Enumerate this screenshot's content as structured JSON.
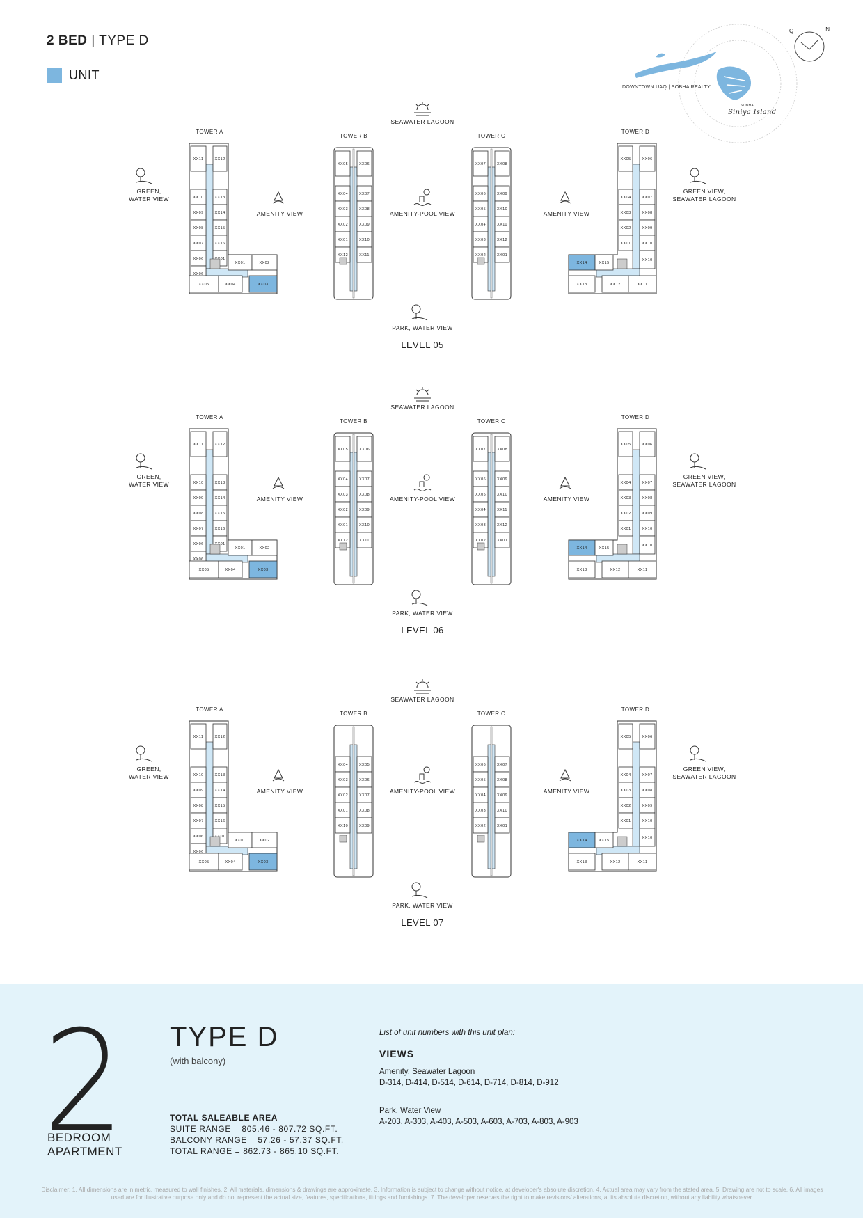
{
  "header": {
    "bed": "2 BED",
    "sep": " | ",
    "type": "TYPE D"
  },
  "legend": {
    "label": "UNIT",
    "color": "#7db6df"
  },
  "map": {
    "caption_left": "DOWNTOWN UAQ | SOBHA REALTY",
    "caption_brand": "SOBHA",
    "caption_island": "Siniya Island",
    "compass_q": "Q",
    "compass_n": "N"
  },
  "views": {
    "top": "SEAWATER LAGOON",
    "bottom": "PARK, WATER VIEW",
    "left_1": "GREEN,",
    "left_2": "WATER VIEW",
    "amenity": "AMENITY VIEW",
    "pool": "AMENITY-POOL VIEW",
    "right_1": "GREEN VIEW,",
    "right_2": "SEAWATER LAGOON"
  },
  "towers": {
    "a": "TOWER A",
    "b": "TOWER B",
    "c": "TOWER C",
    "d": "TOWER D"
  },
  "levels": [
    {
      "label": "LEVEL 05",
      "a": [
        "XX11",
        "XX12",
        "XX10",
        "XX13",
        "XX09",
        "XX14",
        "XX08",
        "XX15",
        "XX07",
        "XX16",
        "XX06",
        "XX01",
        "XX02",
        "XX05",
        "XX04",
        "XX03"
      ],
      "b": [
        "XX05",
        "XX06",
        "XX04",
        "XX07",
        "XX03",
        "XX08",
        "XX02",
        "XX09",
        "XX01",
        "XX10",
        "XX12",
        "XX11"
      ],
      "c": [
        "XX07",
        "XX08",
        "XX06",
        "XX09",
        "XX05",
        "XX10",
        "XX04",
        "XX11",
        "XX03",
        "XX12",
        "XX02",
        "XX01"
      ],
      "d": [
        "XX05",
        "XX06",
        "XX04",
        "XX07",
        "XX03",
        "XX08",
        "XX02",
        "XX09",
        "XX01",
        "XX10",
        "XX14",
        "XX15",
        "XX13",
        "XX12",
        "XX11"
      ]
    },
    {
      "label": "LEVEL 06",
      "a": [
        "XX11",
        "XX12",
        "XX10",
        "XX13",
        "XX09",
        "XX14",
        "XX08",
        "XX15",
        "XX07",
        "XX16",
        "XX06",
        "XX01",
        "XX02",
        "XX05",
        "XX04",
        "XX03"
      ],
      "b": [
        "XX05",
        "XX06",
        "XX04",
        "XX07",
        "XX03",
        "XX08",
        "XX02",
        "XX09",
        "XX01",
        "XX10",
        "XX12",
        "XX11"
      ],
      "c": [
        "XX07",
        "XX08",
        "XX06",
        "XX09",
        "XX05",
        "XX10",
        "XX04",
        "XX11",
        "XX03",
        "XX12",
        "XX02",
        "XX01"
      ],
      "d": [
        "XX05",
        "XX06",
        "XX04",
        "XX07",
        "XX03",
        "XX08",
        "XX02",
        "XX09",
        "XX01",
        "XX10",
        "XX14",
        "XX15",
        "XX13",
        "XX12",
        "XX11"
      ]
    },
    {
      "label": "LEVEL 07",
      "a": [
        "XX11",
        "XX12",
        "XX10",
        "XX13",
        "XX09",
        "XX14",
        "XX08",
        "XX15",
        "XX07",
        "XX16",
        "XX06",
        "XX01",
        "XX02",
        "XX05",
        "XX04",
        "XX03"
      ],
      "b": [
        "XX04",
        "XX05",
        "XX03",
        "XX06",
        "XX02",
        "XX07",
        "XX01",
        "XX08",
        "XX10",
        "XX09"
      ],
      "c": [
        "XX06",
        "XX07",
        "XX05",
        "XX08",
        "XX04",
        "XX09",
        "XX03",
        "XX10",
        "XX02",
        "XX01"
      ],
      "d": [
        "XX05",
        "XX06",
        "XX04",
        "XX07",
        "XX03",
        "XX08",
        "XX02",
        "XX09",
        "XX01",
        "XX10",
        "XX14",
        "XX15",
        "XX13",
        "XX12",
        "XX11"
      ]
    }
  ],
  "summary": {
    "number": "2",
    "bed_line1": "BEDROOM",
    "bed_line2": "APARTMENT",
    "type_title": "TYPE D",
    "type_sub": "(with balcony)",
    "area_heading": "TOTAL SALEABLE AREA",
    "suite_range": "SUITE RANGE = 805.46 - 807.72 SQ.FT.",
    "balcony_range": "BALCONY RANGE = 57.26 - 57.37 SQ.FT.",
    "total_range": "TOTAL RANGE = 862.73 - 865.10 SQ.FT.",
    "list_intro": "List of unit numbers with this unit plan:",
    "views_heading": "VIEWS",
    "view1_name": "Amenity, Seawater Lagoon",
    "view1_units": "D-314, D-414, D-514, D-614, D-714, D-814, D-912",
    "view2_name": "Park, Water View",
    "view2_units": "A-203, A-303, A-403, A-503, A-603, A-703, A-803, A-903"
  },
  "disclaimer": "Disclaimer: 1. All dimensions are in metric, measured to wall finishes. 2. All materials, dimensions & drawings are approximate. 3. Information is subject to change without notice, at developer's absolute discretion. 4. Actual area may vary from the stated area. 5. Drawing are not to scale. 6. All images used are for illustrative purpose only and do not represent the actual size, features, specifications, fittings and furnishings. 7. The developer reserves the right to make revisions/ alterations, at its absolute discretion, without any liability whatsoever."
}
